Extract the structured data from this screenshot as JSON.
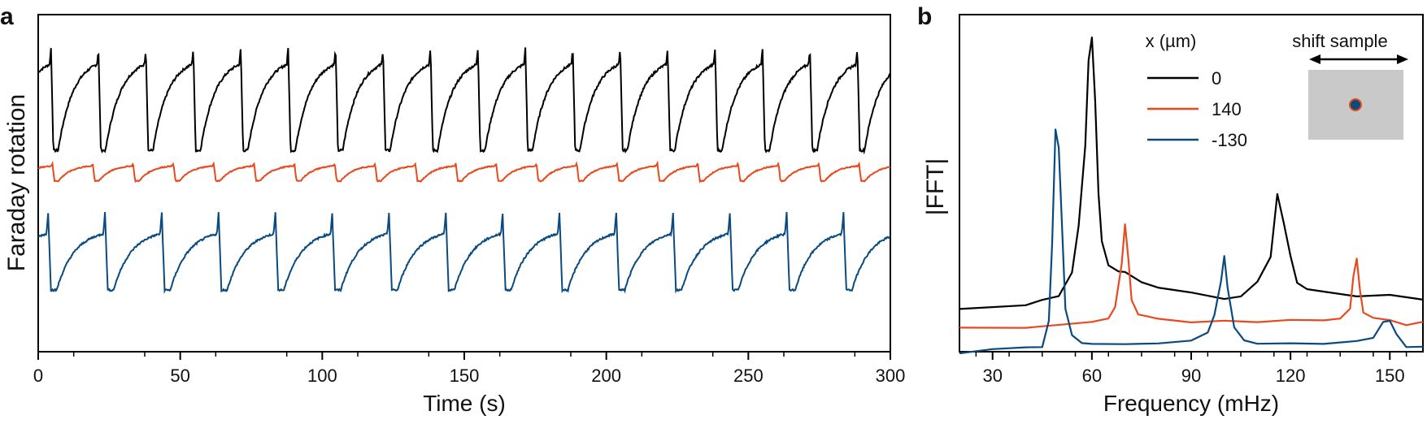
{
  "panels": {
    "a": {
      "label": "a"
    },
    "b": {
      "label": "b"
    }
  },
  "chart_data": [
    {
      "type": "line",
      "panel": "a",
      "xlabel": "Time (s)",
      "ylabel": "Faraday rotation",
      "xlim": [
        0,
        300
      ],
      "xticks": [
        0,
        50,
        100,
        150,
        200,
        250,
        300
      ],
      "xtick_labels": [
        "0",
        "50",
        "100",
        "150",
        "200",
        "250",
        "300"
      ],
      "yticks": [],
      "series": [
        {
          "color": "#000000",
          "period_s": 16.7,
          "phase_s": 4.5,
          "baseline": 0.1,
          "amplitude": 0.72,
          "jump_high": 0.95,
          "noise": 0.02
        },
        {
          "color": "#e8491d",
          "period_s": 14.2,
          "phase_s": 5.0,
          "baseline": 0.6,
          "amplitude": 0.3,
          "jump_high": 0.95,
          "noise": 0.02
        },
        {
          "color": "#0a4a7f",
          "period_s": 20.0,
          "phase_s": 3.5,
          "baseline": 0.18,
          "amplitude": 0.6,
          "jump_high": 1.0,
          "noise": 0.02
        }
      ]
    },
    {
      "type": "line",
      "panel": "b",
      "xlabel": "Frequency (mHz)",
      "ylabel": "|FFT|",
      "xlim": [
        20,
        160
      ],
      "xticks": [
        30,
        60,
        90,
        120,
        150
      ],
      "xtick_labels": [
        "30",
        "60",
        "90",
        "120",
        "150"
      ],
      "legend": {
        "title": "x (µm)",
        "entries": [
          "0",
          "140",
          "-130"
        ],
        "position": "top-right"
      },
      "series": [
        {
          "name": "0",
          "color": "#000000",
          "x": [
            20,
            40,
            45,
            50,
            54,
            56,
            58,
            59,
            60,
            61,
            62,
            63,
            65,
            68,
            70,
            75,
            80,
            90,
            100,
            105,
            110,
            114,
            116,
            118,
            120,
            122,
            125,
            130,
            140,
            150,
            160
          ],
          "y": [
            0.14,
            0.15,
            0.16,
            0.18,
            0.25,
            0.4,
            0.65,
            0.92,
            1.0,
            0.8,
            0.5,
            0.35,
            0.28,
            0.26,
            0.25,
            0.22,
            0.2,
            0.19,
            0.17,
            0.18,
            0.22,
            0.3,
            0.5,
            0.41,
            0.3,
            0.22,
            0.2,
            0.19,
            0.18,
            0.18,
            0.17
          ]
        },
        {
          "name": "140",
          "color": "#e8491d",
          "x": [
            20,
            40,
            60,
            65,
            67,
            69,
            70,
            71,
            72,
            74,
            76,
            80,
            90,
            100,
            110,
            120,
            130,
            135,
            138,
            139,
            140,
            141,
            142,
            145,
            150,
            155,
            160
          ],
          "y": [
            0.08,
            0.08,
            0.09,
            0.1,
            0.14,
            0.28,
            0.4,
            0.3,
            0.16,
            0.12,
            0.11,
            0.1,
            0.09,
            0.1,
            0.09,
            0.1,
            0.1,
            0.11,
            0.14,
            0.24,
            0.3,
            0.2,
            0.12,
            0.11,
            0.1,
            0.09,
            0.1
          ]
        },
        {
          "name": "-130",
          "color": "#0a4a7f",
          "x": [
            20,
            30,
            40,
            45,
            47,
            48,
            49,
            50,
            51,
            52,
            54,
            57,
            60,
            70,
            80,
            90,
            95,
            97,
            99,
            100,
            101,
            103,
            106,
            110,
            120,
            130,
            140,
            145,
            148,
            150,
            152,
            155,
            160
          ],
          "y": [
            0.0,
            0.01,
            0.01,
            0.02,
            0.1,
            0.35,
            0.7,
            0.65,
            0.4,
            0.14,
            0.05,
            0.03,
            0.03,
            0.03,
            0.03,
            0.04,
            0.06,
            0.12,
            0.22,
            0.3,
            0.2,
            0.08,
            0.04,
            0.03,
            0.03,
            0.03,
            0.03,
            0.05,
            0.09,
            0.1,
            0.05,
            0.02,
            0.01
          ]
        }
      ]
    }
  ],
  "inset": {
    "title": "shift sample"
  }
}
